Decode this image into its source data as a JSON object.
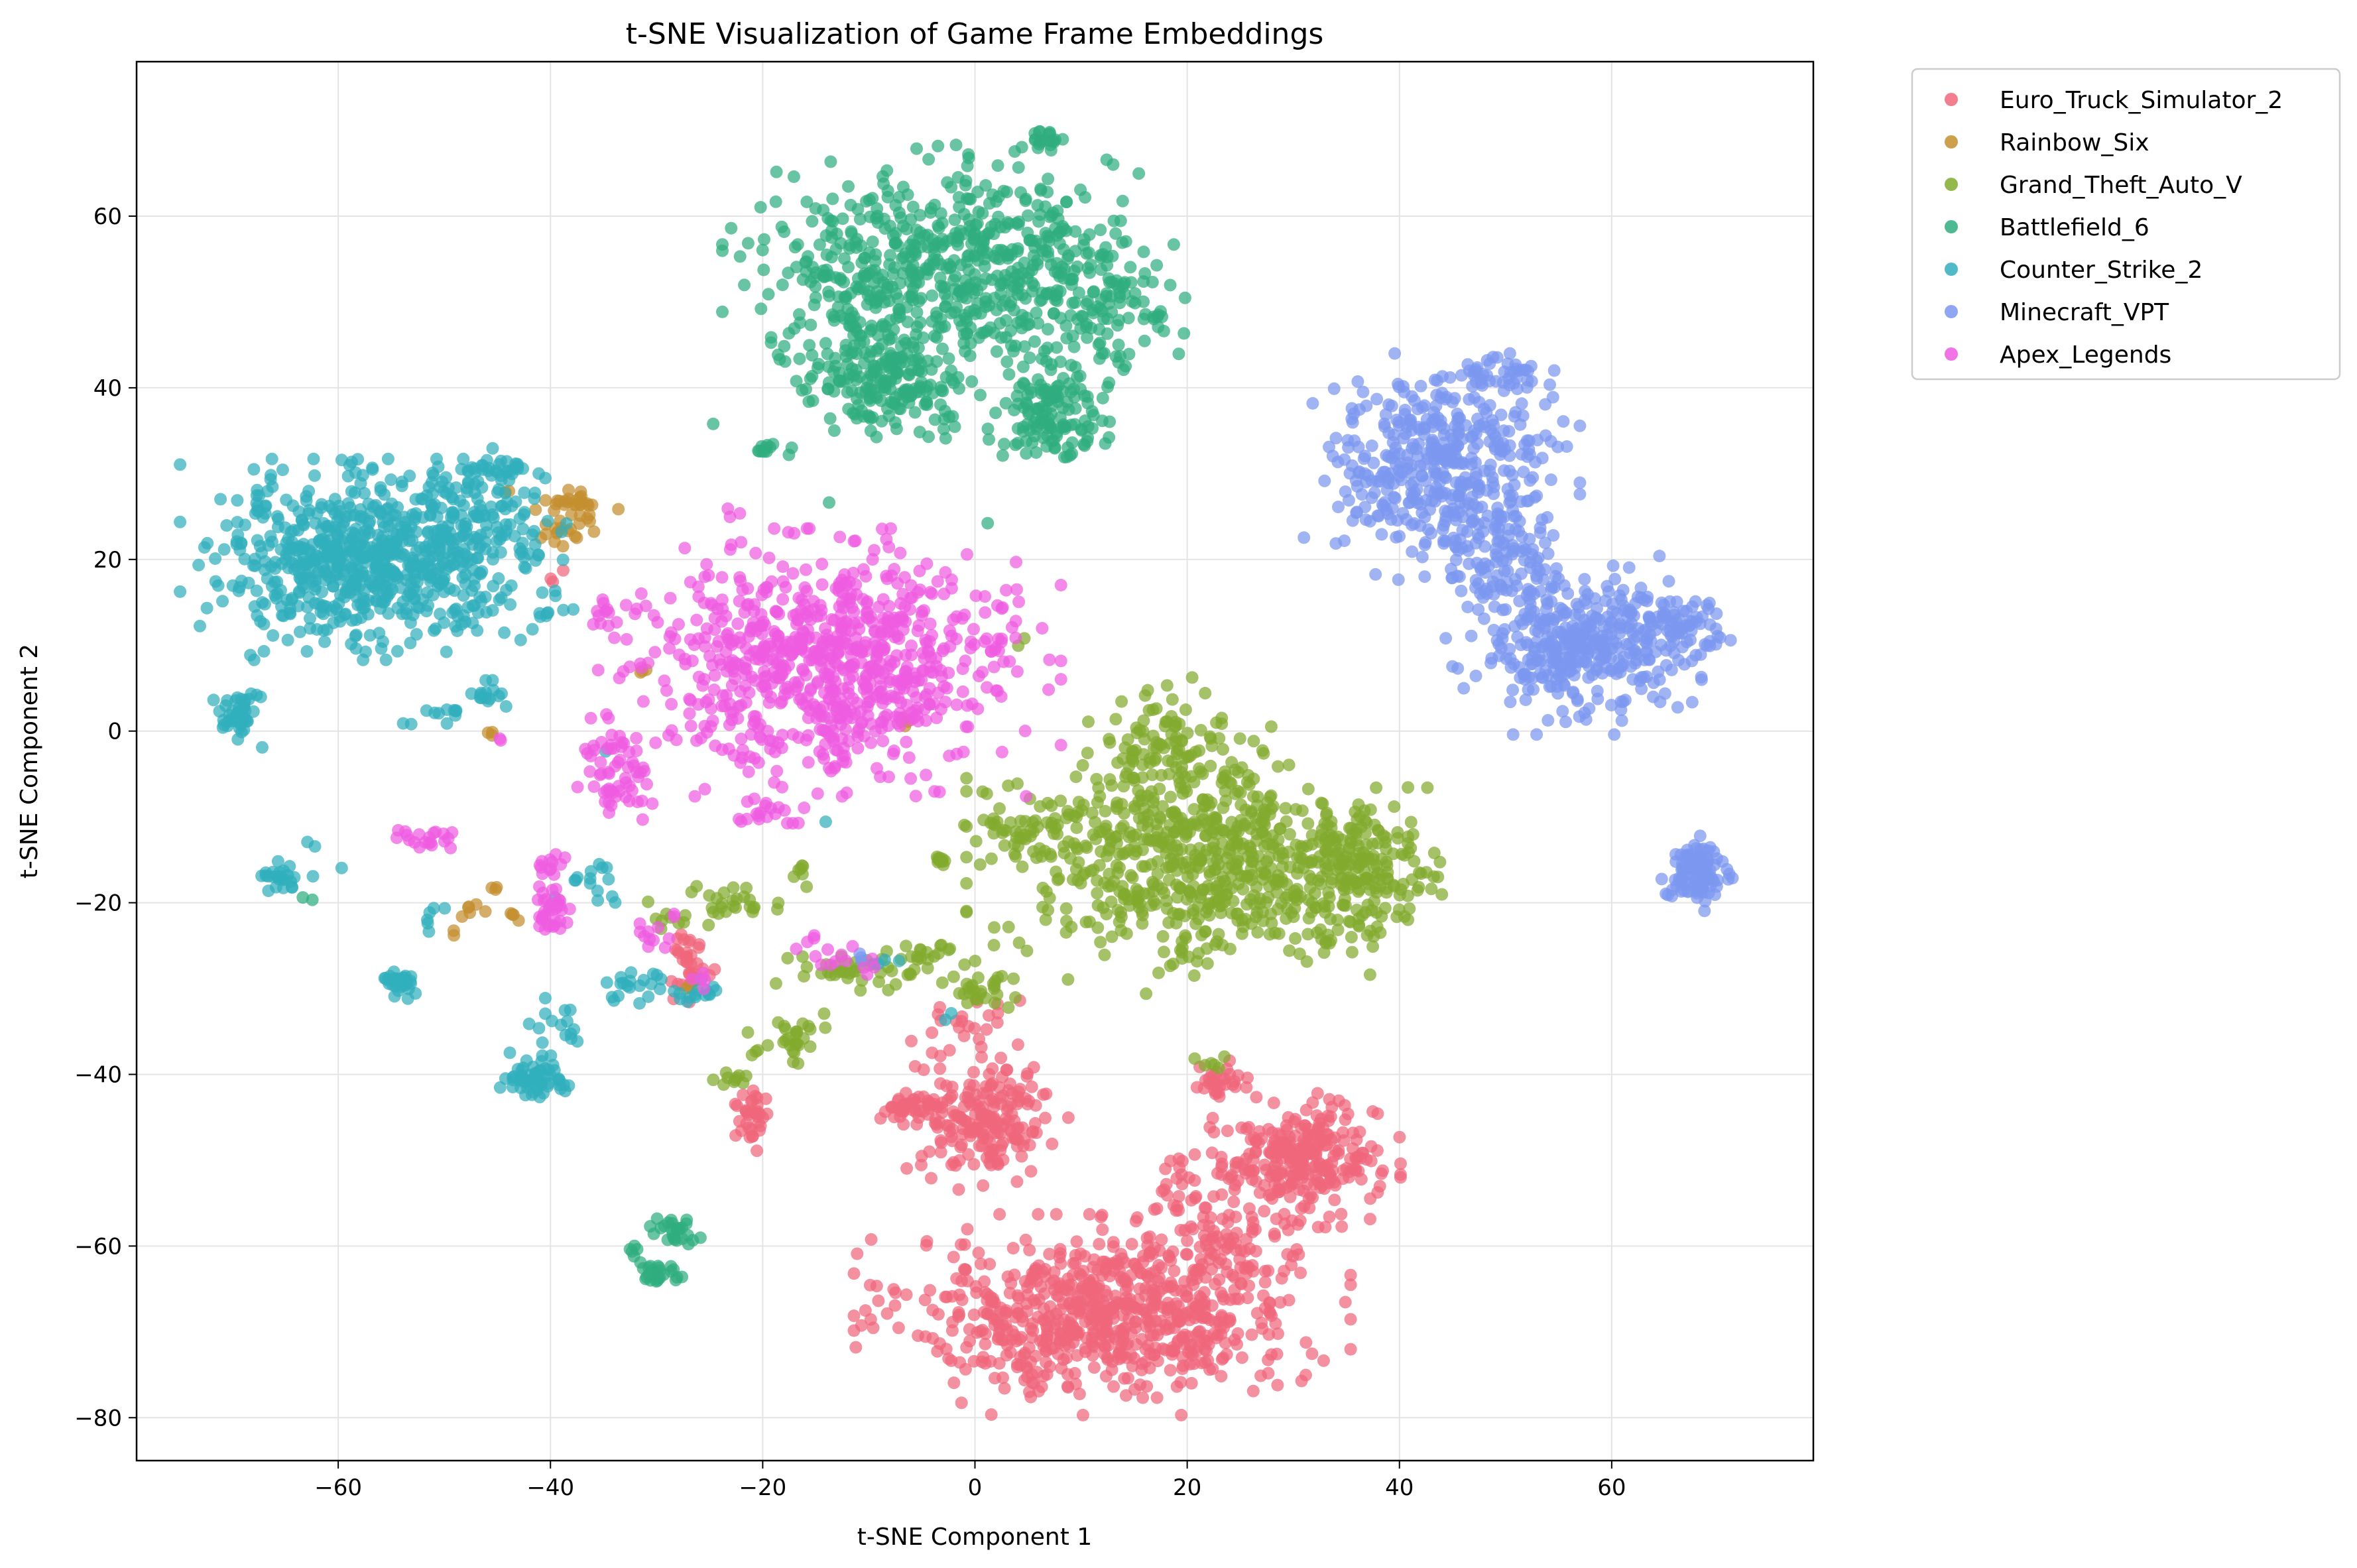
{
  "chart_data": {
    "type": "scatter",
    "title": "t-SNE Visualization of Game Frame Embeddings",
    "xlabel": "t-SNE Component 1",
    "ylabel": "t-SNE Component 2",
    "xlim": [
      -79,
      79
    ],
    "ylim": [
      -85,
      78
    ],
    "x_ticks": [
      -60,
      -40,
      -20,
      0,
      20,
      40,
      60
    ],
    "x_tick_labels": [
      "−60",
      "−40",
      "−20",
      "0",
      "20",
      "40",
      "60"
    ],
    "y_ticks": [
      -80,
      -60,
      -40,
      -20,
      0,
      20,
      40,
      60
    ],
    "y_tick_labels": [
      "−80",
      "−60",
      "−40",
      "−20",
      "0",
      "20",
      "40",
      "60"
    ],
    "grid": true,
    "legend_position": "outside-top-right",
    "series": [
      {
        "name": "Euro_Truck_Simulator_2",
        "color": "#f0677b",
        "clusters": [
          {
            "cx": 12,
            "cy": -68,
            "sx": 9,
            "sy": 4.5,
            "n": 700
          },
          {
            "cx": 23,
            "cy": -58,
            "sx": 4,
            "sy": 5,
            "n": 150
          },
          {
            "cx": 31,
            "cy": -50,
            "sx": 3.5,
            "sy": 3,
            "n": 260
          },
          {
            "cx": 1,
            "cy": -45,
            "sx": 3,
            "sy": 3.5,
            "n": 200
          },
          {
            "cx": -6,
            "cy": -44,
            "sx": 1.5,
            "sy": 0.7,
            "n": 40
          },
          {
            "cx": 23,
            "cy": -41,
            "sx": 1.5,
            "sy": 1,
            "n": 30
          },
          {
            "cx": -21,
            "cy": -45,
            "sx": 0.8,
            "sy": 1.5,
            "n": 35
          },
          {
            "cx": -27,
            "cy": -27,
            "sx": 1,
            "sy": 2,
            "n": 35
          },
          {
            "cx": 0.5,
            "cy": -33,
            "sx": 2.5,
            "sy": 1.2,
            "n": 20
          },
          {
            "cx": -40,
            "cy": 18,
            "sx": 0.5,
            "sy": 0.5,
            "n": 3
          }
        ]
      },
      {
        "name": "Rainbow_Six",
        "color": "#c48f2f",
        "clusters": [
          {
            "cx": -37.5,
            "cy": 26.5,
            "sx": 1.5,
            "sy": 0.8,
            "n": 30
          },
          {
            "cx": -38.5,
            "cy": 23,
            "sx": 1,
            "sy": 0.6,
            "n": 15
          },
          {
            "cx": -44,
            "cy": 27.5,
            "sx": 0.3,
            "sy": 0.3,
            "n": 2
          },
          {
            "cx": -47.5,
            "cy": -21.5,
            "sx": 0.6,
            "sy": 0.5,
            "n": 6
          },
          {
            "cx": -43.5,
            "cy": -21.3,
            "sx": 0.4,
            "sy": 0.4,
            "n": 4
          },
          {
            "cx": -45.5,
            "cy": -18.5,
            "sx": 0.4,
            "sy": 0.4,
            "n": 3
          },
          {
            "cx": -49,
            "cy": -23.5,
            "sx": 0.3,
            "sy": 0.3,
            "n": 2
          },
          {
            "cx": -31.5,
            "cy": 7,
            "sx": 0.3,
            "sy": 0.3,
            "n": 3
          },
          {
            "cx": -7,
            "cy": 1,
            "sx": 0.4,
            "sy": 0.4,
            "n": 4
          },
          {
            "cx": -46,
            "cy": -0.5,
            "sx": 0.3,
            "sy": 0.3,
            "n": 3
          },
          {
            "cx": -27,
            "cy": -30,
            "sx": 0.5,
            "sy": 0.5,
            "n": 3
          }
        ]
      },
      {
        "name": "Grand_Theft_Auto_V",
        "color": "#82ab2e",
        "clusters": [
          {
            "cx": 20,
            "cy": -15,
            "sx": 8,
            "sy": 6,
            "n": 620
          },
          {
            "cx": 36,
            "cy": -17,
            "sx": 3.5,
            "sy": 4,
            "n": 220
          },
          {
            "cx": 18,
            "cy": -1,
            "sx": 3.5,
            "sy": 3,
            "n": 90
          },
          {
            "cx": 5.5,
            "cy": -11,
            "sx": 2.5,
            "sy": 2,
            "n": 50
          },
          {
            "cx": -23,
            "cy": -20,
            "sx": 3,
            "sy": 1.2,
            "n": 30
          },
          {
            "cx": -17.5,
            "cy": -36,
            "sx": 1.5,
            "sy": 1.5,
            "n": 30
          },
          {
            "cx": -10,
            "cy": -27.5,
            "sx": 4,
            "sy": 1.2,
            "n": 45
          },
          {
            "cx": 0,
            "cy": -30,
            "sx": 1.5,
            "sy": 1.5,
            "n": 30
          },
          {
            "cx": -23,
            "cy": -40.5,
            "sx": 0.8,
            "sy": 0.5,
            "n": 10
          },
          {
            "cx": -3,
            "cy": -15,
            "sx": 0.6,
            "sy": 0.6,
            "n": 10
          },
          {
            "cx": -16.5,
            "cy": -16,
            "sx": 0.4,
            "sy": 0.5,
            "n": 6
          },
          {
            "cx": 22,
            "cy": -38.5,
            "sx": 0.8,
            "sy": 0.5,
            "n": 6
          },
          {
            "cx": -29,
            "cy": -22,
            "sx": 0.6,
            "sy": 0.6,
            "n": 6
          },
          {
            "cx": 4,
            "cy": 10.5,
            "sx": 0.3,
            "sy": 0.3,
            "n": 2
          },
          {
            "cx": -4.5,
            "cy": -25.5,
            "sx": 1,
            "sy": 0.6,
            "n": 10
          }
        ]
      },
      {
        "name": "Battlefield_6",
        "color": "#2fad7f",
        "clusters": [
          {
            "cx": -3,
            "cy": 54,
            "sx": 8,
            "sy": 5.5,
            "n": 620
          },
          {
            "cx": -8,
            "cy": 41,
            "sx": 4,
            "sy": 2.8,
            "n": 200
          },
          {
            "cx": 7,
            "cy": 37,
            "sx": 2.5,
            "sy": 2.5,
            "n": 130
          },
          {
            "cx": 12,
            "cy": 50,
            "sx": 3,
            "sy": 4,
            "n": 100
          },
          {
            "cx": 6.5,
            "cy": 69,
            "sx": 0.8,
            "sy": 0.8,
            "n": 20
          },
          {
            "cx": -19,
            "cy": 32.8,
            "sx": 1.3,
            "sy": 0.5,
            "n": 12
          },
          {
            "cx": -28,
            "cy": -58.5,
            "sx": 1.2,
            "sy": 0.8,
            "n": 25
          },
          {
            "cx": -30,
            "cy": -63,
            "sx": 1.5,
            "sy": 0.6,
            "n": 25
          },
          {
            "cx": -32,
            "cy": -60.5,
            "sx": 0.5,
            "sy": 0.5,
            "n": 5
          },
          {
            "cx": 17.5,
            "cy": 48.5,
            "sx": 0.8,
            "sy": 0.3,
            "n": 5
          },
          {
            "cx": -25,
            "cy": 35.7,
            "sx": 0.3,
            "sy": 0.3,
            "n": 1
          },
          {
            "cx": -13.5,
            "cy": 26.2,
            "sx": 0.3,
            "sy": 0.3,
            "n": 1
          },
          {
            "cx": 1,
            "cy": 25,
            "sx": 0.3,
            "sy": 0.3,
            "n": 1
          },
          {
            "cx": -63,
            "cy": -19.2,
            "sx": 0.3,
            "sy": 0.3,
            "n": 2
          }
        ]
      },
      {
        "name": "Counter_Strike_2",
        "color": "#31aebd",
        "clusters": [
          {
            "cx": -58,
            "cy": 20,
            "sx": 6.5,
            "sy": 4.5,
            "n": 650
          },
          {
            "cx": -47,
            "cy": 23,
            "sx": 3.5,
            "sy": 4,
            "n": 140
          },
          {
            "cx": -45,
            "cy": 30.5,
            "sx": 1.5,
            "sy": 0.7,
            "n": 30
          },
          {
            "cx": -69.5,
            "cy": 2,
            "sx": 0.9,
            "sy": 1.5,
            "n": 45
          },
          {
            "cx": -65.5,
            "cy": -17,
            "sx": 1.2,
            "sy": 0.7,
            "n": 25
          },
          {
            "cx": -54,
            "cy": -29.5,
            "sx": 0.9,
            "sy": 0.7,
            "n": 30
          },
          {
            "cx": -41,
            "cy": -40.5,
            "sx": 1.5,
            "sy": 1.2,
            "n": 60
          },
          {
            "cx": -39.5,
            "cy": -34.5,
            "sx": 1.2,
            "sy": 1.5,
            "n": 15
          },
          {
            "cx": -51,
            "cy": -21.5,
            "sx": 0.6,
            "sy": 0.8,
            "n": 6
          },
          {
            "cx": -50,
            "cy": 2,
            "sx": 1.2,
            "sy": 0.5,
            "n": 10
          },
          {
            "cx": -46,
            "cy": 4,
            "sx": 0.8,
            "sy": 1.2,
            "n": 15
          },
          {
            "cx": -40,
            "cy": 14,
            "sx": 1.5,
            "sy": 1.5,
            "n": 10
          },
          {
            "cx": -32,
            "cy": -29.5,
            "sx": 1.5,
            "sy": 1.2,
            "n": 20
          },
          {
            "cx": -36,
            "cy": -17,
            "sx": 1.5,
            "sy": 1.5,
            "n": 15
          },
          {
            "cx": -26,
            "cy": -30.5,
            "sx": 1.3,
            "sy": 0.6,
            "n": 15
          },
          {
            "cx": -62.5,
            "cy": -13,
            "sx": 0.3,
            "sy": 0.5,
            "n": 2
          },
          {
            "cx": -60,
            "cy": -16.5,
            "sx": 0.3,
            "sy": 0.3,
            "n": 1
          },
          {
            "cx": -14.5,
            "cy": -10.5,
            "sx": 0.3,
            "sy": 0.3,
            "n": 1
          },
          {
            "cx": -9,
            "cy": -27,
            "sx": 1,
            "sy": 0.5,
            "n": 4
          },
          {
            "cx": -3,
            "cy": -33.5,
            "sx": 0.4,
            "sy": 0.4,
            "n": 2
          },
          {
            "cx": -34.5,
            "cy": -2,
            "sx": 0.3,
            "sy": 0.3,
            "n": 1
          },
          {
            "cx": -54,
            "cy": 0.8,
            "sx": 0.3,
            "sy": 0.3,
            "n": 1
          }
        ]
      },
      {
        "name": "Minecraft_VPT",
        "color": "#7b97f0",
        "clusters": [
          {
            "cx": 44,
            "cy": 31,
            "sx": 5,
            "sy": 5,
            "n": 420
          },
          {
            "cx": 57,
            "cy": 10,
            "sx": 5,
            "sy": 4,
            "n": 380
          },
          {
            "cx": 49,
            "cy": 20,
            "sx": 3.5,
            "sy": 3,
            "n": 100
          },
          {
            "cx": 66,
            "cy": 12,
            "sx": 2,
            "sy": 1.5,
            "n": 60
          },
          {
            "cx": 68,
            "cy": -16.5,
            "sx": 1.3,
            "sy": 1.8,
            "n": 110
          },
          {
            "cx": 50,
            "cy": 41.5,
            "sx": 2.5,
            "sy": 1,
            "n": 40
          },
          {
            "cx": 45,
            "cy": 7.5,
            "sx": 0.3,
            "sy": 0.3,
            "n": 2
          },
          {
            "cx": -11,
            "cy": -26,
            "sx": 0.5,
            "sy": 0.5,
            "n": 3
          }
        ]
      },
      {
        "name": "Apex_Legends",
        "color": "#ef5be1",
        "clusters": [
          {
            "cx": -14,
            "cy": 8,
            "sx": 8.5,
            "sy": 6,
            "n": 800
          },
          {
            "cx": -34,
            "cy": -5,
            "sx": 1.8,
            "sy": 2.5,
            "n": 60
          },
          {
            "cx": -20,
            "cy": -9.5,
            "sx": 1.5,
            "sy": 0.8,
            "n": 20
          },
          {
            "cx": -51.5,
            "cy": -12.5,
            "sx": 1.5,
            "sy": 0.6,
            "n": 20
          },
          {
            "cx": -40,
            "cy": -21,
            "sx": 0.8,
            "sy": 1.3,
            "n": 35
          },
          {
            "cx": -40,
            "cy": -15.5,
            "sx": 0.8,
            "sy": 0.6,
            "n": 12
          },
          {
            "cx": -34,
            "cy": 13.5,
            "sx": 1.2,
            "sy": 0.8,
            "n": 12
          },
          {
            "cx": -30,
            "cy": -23,
            "sx": 1.2,
            "sy": 1.5,
            "n": 12
          },
          {
            "cx": -12,
            "cy": -26.5,
            "sx": 1.5,
            "sy": 0.8,
            "n": 12
          },
          {
            "cx": 1.5,
            "cy": 10.5,
            "sx": 0.8,
            "sy": 0.5,
            "n": 6
          },
          {
            "cx": -23,
            "cy": 25.5,
            "sx": 0.4,
            "sy": 0.4,
            "n": 3
          },
          {
            "cx": -26,
            "cy": -29,
            "sx": 0.6,
            "sy": 0.6,
            "n": 5
          },
          {
            "cx": -45,
            "cy": -1,
            "sx": 0.3,
            "sy": 0.3,
            "n": 2
          },
          {
            "cx": -16,
            "cy": -24.5,
            "sx": 0.6,
            "sy": 0.6,
            "n": 4
          }
        ]
      }
    ]
  }
}
